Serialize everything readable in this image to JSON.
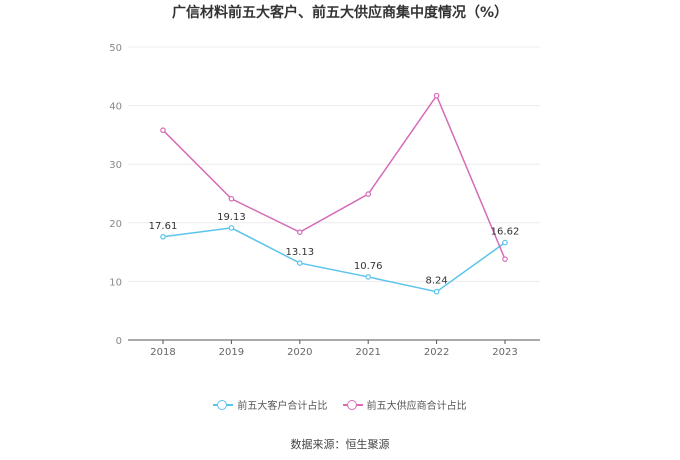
{
  "title": "广信材料前五大客户、前五大供应商集中度情况（%）",
  "source": "数据来源：恒生聚源",
  "chart_data": {
    "type": "line",
    "categories": [
      "2018",
      "2019",
      "2020",
      "2021",
      "2022",
      "2023"
    ],
    "ylim": [
      0,
      50
    ],
    "yticks": [
      0,
      10,
      20,
      30,
      40,
      50
    ],
    "grid": true,
    "legend_position": "bottom",
    "series": [
      {
        "name": "前五大客户合计占比",
        "color": "#5bc4ed",
        "values": [
          17.61,
          19.13,
          13.13,
          10.76,
          8.24,
          16.62
        ],
        "show_labels": true
      },
      {
        "name": "前五大供应商合计占比",
        "color": "#d66bb8",
        "values": [
          35.8,
          24.1,
          18.4,
          24.9,
          41.7,
          13.8
        ],
        "show_labels": false
      }
    ]
  }
}
